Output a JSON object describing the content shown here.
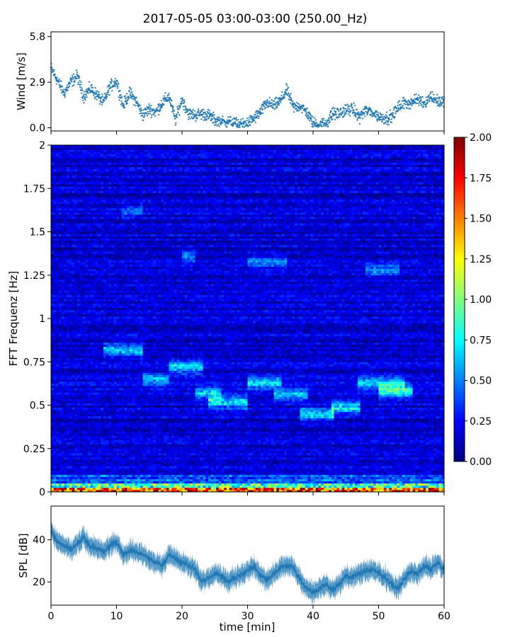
{
  "figure": {
    "title": "2017-05-05 03:00-03:00 (250.00_Hz)"
  },
  "chart_data": [
    {
      "id": "wind",
      "type": "scatter",
      "ylabel": "Wind [m/s]",
      "xlabel": "",
      "xlim": [
        0,
        60
      ],
      "ylim": [
        -0.2,
        6.1
      ],
      "y_ticks": [
        "0.0",
        "2.9",
        "5.8"
      ],
      "y_tick_values": [
        0.0,
        2.9,
        5.8
      ],
      "color": "#1f77b4",
      "trend": {
        "x": [
          0,
          1,
          2,
          3,
          4,
          5,
          6,
          7,
          8,
          9,
          10,
          11,
          12,
          13,
          14,
          15,
          16,
          17,
          18,
          19,
          20,
          21,
          22,
          23,
          24,
          25,
          26,
          27,
          28,
          29,
          30,
          31,
          32,
          33,
          34,
          35,
          36,
          37,
          38,
          39,
          40,
          41,
          42,
          43,
          44,
          45,
          46,
          47,
          48,
          49,
          50,
          51,
          52,
          53,
          54,
          55,
          56,
          57,
          58,
          59,
          60
        ],
        "y": [
          3.8,
          3.0,
          2.2,
          2.9,
          3.3,
          2.0,
          2.5,
          2.1,
          1.6,
          2.6,
          3.0,
          1.4,
          2.2,
          1.7,
          0.8,
          1.2,
          1.0,
          1.6,
          2.0,
          0.5,
          1.8,
          0.9,
          0.8,
          0.9,
          0.8,
          0.5,
          0.4,
          0.4,
          0.3,
          0.2,
          0.3,
          0.6,
          1.0,
          1.6,
          1.4,
          1.7,
          2.4,
          1.3,
          1.4,
          1.0,
          0.3,
          0.2,
          0.3,
          0.9,
          0.9,
          1.1,
          1.2,
          0.7,
          1.1,
          1.0,
          0.7,
          0.6,
          0.7,
          1.3,
          1.6,
          1.6,
          1.8,
          1.6,
          2.0,
          1.7,
          1.6
        ]
      }
    },
    {
      "id": "spectrogram",
      "type": "heatmap",
      "ylabel": "FFT Frequenz [Hz]",
      "xlim": [
        0,
        60
      ],
      "ylim": [
        0,
        2
      ],
      "y_ticks": [
        "0",
        "0.25",
        "0.5",
        "0.75",
        "1",
        "1.25",
        "1.5",
        "1.75",
        "2"
      ],
      "y_tick_values": [
        0,
        0.25,
        0.5,
        0.75,
        1,
        1.25,
        1.5,
        1.75,
        2
      ],
      "colormap": "jet",
      "clim": [
        0.0,
        2.0
      ],
      "colorbar_ticks": [
        "0.00",
        "0.25",
        "0.50",
        "0.75",
        "1.00",
        "1.25",
        "1.50",
        "1.75",
        "2.00"
      ],
      "colorbar_tick_values": [
        0.0,
        0.25,
        0.5,
        0.75,
        1.0,
        1.25,
        1.5,
        1.75,
        2.0
      ],
      "background_level": 0.17,
      "features": [
        {
          "t_start": 8,
          "t_end": 14,
          "freq": 0.82,
          "level": 0.62
        },
        {
          "t_start": 14,
          "t_end": 18,
          "freq": 0.65,
          "level": 0.55
        },
        {
          "t_start": 18,
          "t_end": 23,
          "freq": 0.72,
          "level": 0.68
        },
        {
          "t_start": 22,
          "t_end": 26,
          "freq": 0.57,
          "level": 0.6
        },
        {
          "t_start": 24,
          "t_end": 30,
          "freq": 0.52,
          "level": 0.72
        },
        {
          "t_start": 30,
          "t_end": 35,
          "freq": 0.63,
          "level": 0.58
        },
        {
          "t_start": 34,
          "t_end": 39,
          "freq": 0.56,
          "level": 0.55
        },
        {
          "t_start": 38,
          "t_end": 43,
          "freq": 0.45,
          "level": 0.65
        },
        {
          "t_start": 43,
          "t_end": 47,
          "freq": 0.49,
          "level": 0.7
        },
        {
          "t_start": 47,
          "t_end": 54,
          "freq": 0.63,
          "level": 0.62
        },
        {
          "t_start": 50,
          "t_end": 55,
          "freq": 0.58,
          "level": 0.8
        },
        {
          "t_start": 20,
          "t_end": 22,
          "freq": 1.36,
          "level": 0.45
        },
        {
          "t_start": 30,
          "t_end": 36,
          "freq": 1.33,
          "level": 0.38
        },
        {
          "t_start": 48,
          "t_end": 53,
          "freq": 1.28,
          "level": 0.4
        },
        {
          "t_start": 11,
          "t_end": 14,
          "freq": 1.62,
          "level": 0.32
        }
      ]
    },
    {
      "id": "spl",
      "type": "line",
      "ylabel": "SPL [dB]",
      "xlabel": "time [min]",
      "xlim": [
        0,
        60
      ],
      "ylim": [
        9,
        56
      ],
      "x_ticks": [
        "0",
        "10",
        "20",
        "30",
        "40",
        "50",
        "60"
      ],
      "x_tick_values": [
        0,
        10,
        20,
        30,
        40,
        50,
        60
      ],
      "y_ticks": [
        "20",
        "40"
      ],
      "y_tick_values": [
        20,
        40
      ],
      "color": "#1f77b4",
      "x": [
        0,
        1,
        2,
        3,
        4,
        5,
        6,
        7,
        8,
        9,
        10,
        11,
        12,
        13,
        14,
        15,
        16,
        17,
        18,
        19,
        20,
        21,
        22,
        23,
        24,
        25,
        26,
        27,
        28,
        29,
        30,
        31,
        32,
        33,
        34,
        35,
        36,
        37,
        38,
        39,
        40,
        41,
        42,
        43,
        44,
        45,
        46,
        47,
        48,
        49,
        50,
        51,
        52,
        53,
        54,
        55,
        56,
        57,
        58,
        59,
        60
      ],
      "y": [
        44,
        39,
        37,
        35,
        38,
        41,
        37,
        36,
        34,
        37,
        39,
        33,
        35,
        34,
        33,
        31,
        29,
        28,
        33,
        31,
        29,
        28,
        26,
        20,
        22,
        24,
        23,
        20,
        22,
        23,
        26,
        27,
        23,
        21,
        24,
        27,
        28,
        27,
        21,
        17,
        15,
        17,
        19,
        16,
        19,
        23,
        22,
        24,
        25,
        26,
        24,
        22,
        19,
        17,
        22,
        25,
        24,
        28,
        26,
        29,
        26
      ]
    }
  ]
}
